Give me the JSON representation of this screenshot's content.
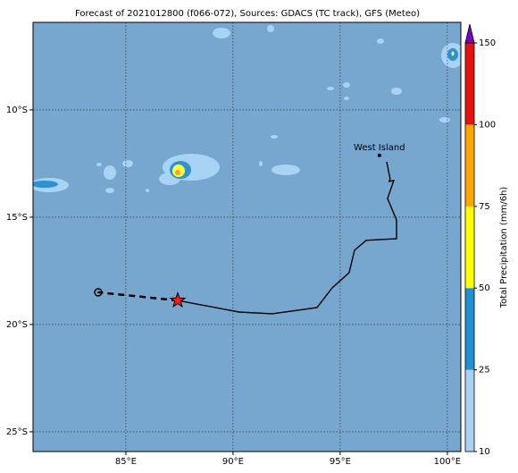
{
  "map": {
    "title": "Forecast of 2021012800 (f066-072), Sources: GDACS (TC track), GFS (Meteo)",
    "xlim": [
      80.67,
      100.63
    ],
    "ylim": [
      -25.92,
      -5.92
    ],
    "xticks": [
      {
        "value": 85,
        "label": "85°E"
      },
      {
        "value": 90,
        "label": "90°E"
      },
      {
        "value": 95,
        "label": "95°E"
      },
      {
        "value": 100,
        "label": "100°E"
      }
    ],
    "yticks": [
      {
        "value": -10,
        "label": "10°S"
      },
      {
        "value": -15,
        "label": "15°S"
      },
      {
        "value": -20,
        "label": "20°S"
      },
      {
        "value": -25,
        "label": "25°S"
      }
    ],
    "grid": true,
    "place": {
      "label": "West Island",
      "lon": 96.83,
      "lat": -12.12
    },
    "track": {
      "lon": [
        97.17,
        97.33,
        97.29,
        97.5,
        97.21,
        97.63,
        97.63,
        96.21,
        95.67,
        95.42,
        94.63,
        93.92,
        91.83,
        90.29,
        87.42
      ],
      "lat": [
        -12.42,
        -13.21,
        -13.33,
        -13.29,
        -14.13,
        -15.13,
        -16.0,
        -16.08,
        -16.54,
        -17.58,
        -18.29,
        -19.21,
        -19.5,
        -19.42,
        -18.88
      ]
    },
    "forecast": {
      "lon": [
        87.42,
        83.71
      ],
      "lat": [
        -18.88,
        -18.5
      ]
    },
    "colorbar": {
      "label": "Total Precipitation (mm/6h)",
      "levels": [
        10,
        25,
        50,
        75,
        100,
        150
      ],
      "colors": [
        "#a9d3f5",
        "#1f8fd6",
        "#ffff00",
        "#ffa500",
        "#e8120c"
      ],
      "extend_color": "#7a00c8"
    }
  }
}
